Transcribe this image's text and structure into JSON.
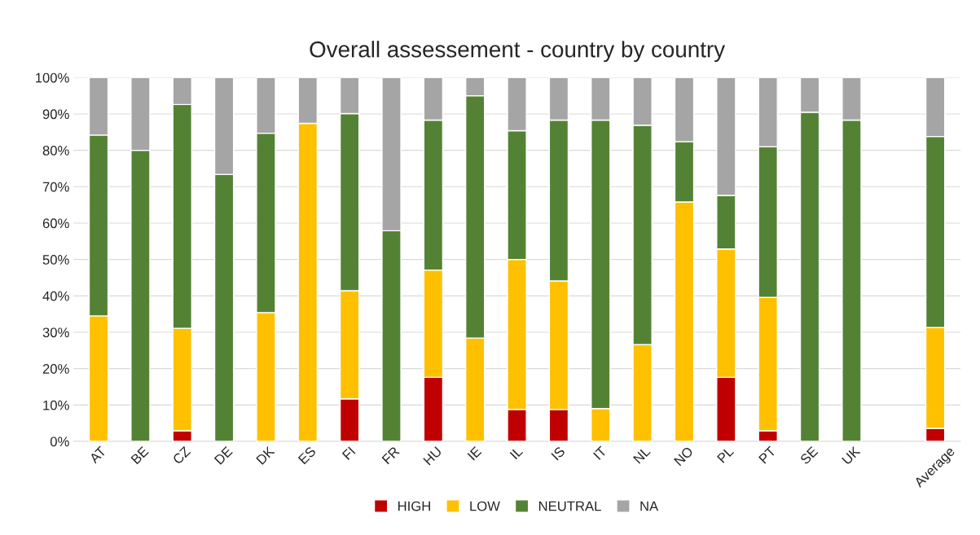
{
  "chart_data": {
    "type": "bar",
    "title": "Overall assessement - country by country",
    "stacked": true,
    "categories": [
      "AT",
      "BE",
      "CZ",
      "DE",
      "DK",
      "ES",
      "FI",
      "FR",
      "HU",
      "IE",
      "IL",
      "IS",
      "IT",
      "NL",
      "NO",
      "PL",
      "PT",
      "SE",
      "UK",
      null,
      "Average"
    ],
    "series": [
      {
        "name": "HIGH",
        "color": "#c00000",
        "values": [
          null,
          null,
          2.9,
          null,
          null,
          null,
          11.7,
          null,
          17.6,
          null,
          8.8,
          8.8,
          null,
          null,
          null,
          17.6,
          2.9,
          null,
          null,
          null,
          3.6
        ]
      },
      {
        "name": "LOW",
        "color": "#ffc000",
        "values": [
          34.5,
          null,
          28.2,
          null,
          35.4,
          87.4,
          29.7,
          null,
          29.5,
          28.4,
          41.2,
          35.3,
          9,
          26.6,
          65.8,
          35.3,
          36.7,
          null,
          null,
          null,
          27.7
        ]
      },
      {
        "name": "NEUTRAL",
        "color": "#548235",
        "values": [
          49.7,
          80,
          61.5,
          73.4,
          49.3,
          null,
          48.7,
          57.9,
          41.2,
          66.6,
          35.4,
          44.2,
          79.3,
          60.3,
          16.6,
          14.7,
          41.4,
          90.5,
          88.3,
          null,
          52.5
        ]
      },
      {
        "name": "NA",
        "color": "#a5a5a5",
        "values": [
          15.8,
          20,
          7.4,
          26.6,
          15.3,
          12.6,
          9.9,
          42.1,
          11.7,
          5,
          14.6,
          11.7,
          11.7,
          13.1,
          17.6,
          32.4,
          19,
          9.5,
          11.7,
          null,
          16.2
        ]
      }
    ],
    "ylim": [
      0,
      100
    ],
    "yticks": [
      {
        "value": 0,
        "label": "0%"
      },
      {
        "value": 10,
        "label": "10%"
      },
      {
        "value": 20,
        "label": "20%"
      },
      {
        "value": 30,
        "label": "30%"
      },
      {
        "value": 40,
        "label": "40%"
      },
      {
        "value": 50,
        "label": "50%"
      },
      {
        "value": 60,
        "label": "60%"
      },
      {
        "value": 70,
        "label": "70%"
      },
      {
        "value": 80,
        "label": "80%"
      },
      {
        "value": 90,
        "label": "90%"
      },
      {
        "value": 100,
        "label": "100%"
      }
    ],
    "grid": "y",
    "legend": "bottom"
  }
}
